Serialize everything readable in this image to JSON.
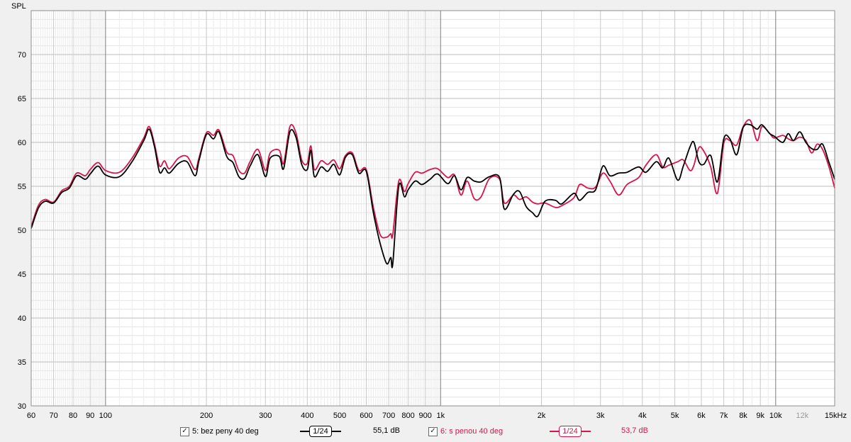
{
  "chart_data": {
    "type": "line",
    "ylabel": "SPL",
    "xscale": "log",
    "xlim": [
      60,
      15000
    ],
    "ylim": [
      30,
      75
    ],
    "yticks": [
      30,
      35,
      40,
      45,
      50,
      55,
      60,
      65,
      70
    ],
    "xticks": [
      {
        "v": 60,
        "label": "60"
      },
      {
        "v": 70,
        "label": "70"
      },
      {
        "v": 80,
        "label": "80"
      },
      {
        "v": 90,
        "label": "90"
      },
      {
        "v": 100,
        "label": "100"
      },
      {
        "v": 200,
        "label": "200"
      },
      {
        "v": 300,
        "label": "300"
      },
      {
        "v": 400,
        "label": "400"
      },
      {
        "v": 500,
        "label": "500"
      },
      {
        "v": 600,
        "label": "600"
      },
      {
        "v": 700,
        "label": "700"
      },
      {
        "v": 800,
        "label": "800"
      },
      {
        "v": 900,
        "label": "900"
      },
      {
        "v": 1000,
        "label": "1k"
      },
      {
        "v": 2000,
        "label": "2k"
      },
      {
        "v": 3000,
        "label": "3k"
      },
      {
        "v": 4000,
        "label": "4k"
      },
      {
        "v": 5000,
        "label": "5k"
      },
      {
        "v": 6000,
        "label": "6k"
      },
      {
        "v": 7000,
        "label": "7k"
      },
      {
        "v": 8000,
        "label": "8k"
      },
      {
        "v": 9000,
        "label": "9k"
      },
      {
        "v": 10000,
        "label": "10k"
      },
      {
        "v": 12000,
        "label": "12k",
        "muted": true
      },
      {
        "v": 15000,
        "label": "15kHz"
      }
    ],
    "grid": true,
    "legend_position": "bottom",
    "series": [
      {
        "name": "5: bez peny 40 deg",
        "color": "#000000",
        "smoothing": "1/24",
        "value_label": "55,1 dB",
        "points": [
          [
            60,
            50.2
          ],
          [
            63,
            52.5
          ],
          [
            66,
            53.3
          ],
          [
            70,
            53.1
          ],
          [
            74,
            54.3
          ],
          [
            78,
            54.8
          ],
          [
            82,
            56.2
          ],
          [
            87,
            55.8
          ],
          [
            90,
            56.4
          ],
          [
            95,
            57.3
          ],
          [
            100,
            56.3
          ],
          [
            110,
            56.1
          ],
          [
            120,
            57.8
          ],
          [
            130,
            60.2
          ],
          [
            135,
            61.5
          ],
          [
            140,
            59.5
          ],
          [
            145,
            56.6
          ],
          [
            150,
            57.1
          ],
          [
            155,
            56.5
          ],
          [
            165,
            57.6
          ],
          [
            175,
            57.8
          ],
          [
            185,
            56.2
          ],
          [
            190,
            57.9
          ],
          [
            200,
            60.9
          ],
          [
            210,
            60.4
          ],
          [
            218,
            61.2
          ],
          [
            230,
            58.4
          ],
          [
            240,
            57.7
          ],
          [
            250,
            56.1
          ],
          [
            260,
            55.9
          ],
          [
            270,
            57.3
          ],
          [
            285,
            58.6
          ],
          [
            300,
            56.1
          ],
          [
            310,
            58.2
          ],
          [
            330,
            58.4
          ],
          [
            340,
            57.0
          ],
          [
            355,
            61.2
          ],
          [
            370,
            60.6
          ],
          [
            385,
            57.5
          ],
          [
            400,
            56.9
          ],
          [
            410,
            59.1
          ],
          [
            420,
            56.1
          ],
          [
            440,
            57.2
          ],
          [
            460,
            56.7
          ],
          [
            480,
            57.5
          ],
          [
            500,
            56.3
          ],
          [
            520,
            58.3
          ],
          [
            545,
            58.6
          ],
          [
            570,
            56.5
          ],
          [
            600,
            56.7
          ],
          [
            630,
            52.0
          ],
          [
            660,
            48.5
          ],
          [
            690,
            46.2
          ],
          [
            710,
            46.9
          ],
          [
            720,
            46.2
          ],
          [
            750,
            55.0
          ],
          [
            780,
            53.8
          ],
          [
            800,
            54.6
          ],
          [
            840,
            55.6
          ],
          [
            880,
            55.2
          ],
          [
            930,
            55.8
          ],
          [
            980,
            56.4
          ],
          [
            1050,
            55.3
          ],
          [
            1100,
            56.2
          ],
          [
            1150,
            54.6
          ],
          [
            1200,
            56.0
          ],
          [
            1260,
            55.6
          ],
          [
            1320,
            55.5
          ],
          [
            1400,
            56.1
          ],
          [
            1500,
            56.0
          ],
          [
            1550,
            52.4
          ],
          [
            1650,
            54.1
          ],
          [
            1720,
            54.4
          ],
          [
            1800,
            52.7
          ],
          [
            1880,
            52.0
          ],
          [
            1950,
            51.6
          ],
          [
            2050,
            53.3
          ],
          [
            2200,
            53.4
          ],
          [
            2300,
            53.0
          ],
          [
            2500,
            54.2
          ],
          [
            2600,
            53.4
          ],
          [
            2750,
            54.3
          ],
          [
            2900,
            54.6
          ],
          [
            3050,
            57.3
          ],
          [
            3200,
            56.2
          ],
          [
            3400,
            56.5
          ],
          [
            3600,
            56.6
          ],
          [
            3900,
            57.2
          ],
          [
            4100,
            56.6
          ],
          [
            4400,
            57.8
          ],
          [
            4600,
            57.1
          ],
          [
            4800,
            58.2
          ],
          [
            5100,
            55.7
          ],
          [
            5300,
            57.3
          ],
          [
            5550,
            59.5
          ],
          [
            5700,
            60.0
          ],
          [
            5900,
            57.8
          ],
          [
            6100,
            57.5
          ],
          [
            6400,
            58.5
          ],
          [
            6700,
            55.5
          ],
          [
            7000,
            60.4
          ],
          [
            7300,
            60.4
          ],
          [
            7650,
            58.6
          ],
          [
            8000,
            61.7
          ],
          [
            8400,
            62.0
          ],
          [
            8800,
            61.5
          ],
          [
            9100,
            62.0
          ],
          [
            9600,
            61.0
          ],
          [
            9900,
            60.7
          ],
          [
            10500,
            60.0
          ],
          [
            10900,
            61.0
          ],
          [
            11300,
            60.2
          ],
          [
            11800,
            61.2
          ],
          [
            12300,
            60.0
          ],
          [
            12800,
            59.3
          ],
          [
            13300,
            59.2
          ],
          [
            13800,
            59.8
          ],
          [
            14400,
            57.8
          ],
          [
            15000,
            55.8
          ]
        ]
      },
      {
        "name": "6: s penou 40 deg",
        "color": "#d7144b",
        "smoothing": "1/24",
        "value_label": "53,7 dB",
        "points": [
          [
            60,
            50.4
          ],
          [
            63,
            52.8
          ],
          [
            66,
            53.5
          ],
          [
            70,
            53.2
          ],
          [
            74,
            54.5
          ],
          [
            78,
            55.0
          ],
          [
            82,
            56.5
          ],
          [
            87,
            56.2
          ],
          [
            90,
            56.9
          ],
          [
            95,
            57.7
          ],
          [
            100,
            56.8
          ],
          [
            110,
            56.6
          ],
          [
            120,
            58.2
          ],
          [
            130,
            60.5
          ],
          [
            135,
            61.8
          ],
          [
            140,
            59.8
          ],
          [
            145,
            57.3
          ],
          [
            150,
            57.9
          ],
          [
            155,
            57.0
          ],
          [
            165,
            58.2
          ],
          [
            175,
            58.4
          ],
          [
            185,
            56.9
          ],
          [
            190,
            58.2
          ],
          [
            200,
            61.1
          ],
          [
            210,
            60.8
          ],
          [
            218,
            61.4
          ],
          [
            230,
            58.9
          ],
          [
            240,
            58.5
          ],
          [
            250,
            56.8
          ],
          [
            260,
            56.5
          ],
          [
            270,
            57.8
          ],
          [
            285,
            59.2
          ],
          [
            300,
            56.8
          ],
          [
            310,
            58.8
          ],
          [
            330,
            59.1
          ],
          [
            340,
            57.6
          ],
          [
            355,
            61.8
          ],
          [
            370,
            61.1
          ],
          [
            385,
            58.0
          ],
          [
            400,
            57.6
          ],
          [
            410,
            59.6
          ],
          [
            420,
            56.9
          ],
          [
            440,
            57.9
          ],
          [
            460,
            57.5
          ],
          [
            480,
            58.0
          ],
          [
            500,
            57.0
          ],
          [
            520,
            58.5
          ],
          [
            545,
            58.8
          ],
          [
            570,
            56.8
          ],
          [
            600,
            56.9
          ],
          [
            630,
            52.6
          ],
          [
            660,
            49.5
          ],
          [
            690,
            49.2
          ],
          [
            710,
            49.6
          ],
          [
            720,
            49.5
          ],
          [
            750,
            55.6
          ],
          [
            780,
            54.4
          ],
          [
            800,
            55.3
          ],
          [
            840,
            56.6
          ],
          [
            880,
            56.5
          ],
          [
            930,
            56.9
          ],
          [
            980,
            57.0
          ],
          [
            1050,
            56.0
          ],
          [
            1100,
            56.3
          ],
          [
            1150,
            54.0
          ],
          [
            1200,
            55.6
          ],
          [
            1260,
            53.6
          ],
          [
            1320,
            53.8
          ],
          [
            1400,
            55.9
          ],
          [
            1500,
            55.8
          ],
          [
            1550,
            53.1
          ],
          [
            1650,
            54.0
          ],
          [
            1720,
            53.5
          ],
          [
            1800,
            53.8
          ],
          [
            1880,
            53.2
          ],
          [
            1950,
            53.0
          ],
          [
            2050,
            53.1
          ],
          [
            2200,
            52.6
          ],
          [
            2300,
            52.8
          ],
          [
            2500,
            53.7
          ],
          [
            2600,
            55.2
          ],
          [
            2750,
            54.8
          ],
          [
            2900,
            54.9
          ],
          [
            3050,
            56.5
          ],
          [
            3200,
            55.6
          ],
          [
            3400,
            54.0
          ],
          [
            3600,
            55.2
          ],
          [
            3900,
            56.0
          ],
          [
            4100,
            57.4
          ],
          [
            4400,
            58.6
          ],
          [
            4600,
            57.2
          ],
          [
            4800,
            57.4
          ],
          [
            5100,
            57.8
          ],
          [
            5300,
            58.0
          ],
          [
            5550,
            56.8
          ],
          [
            5700,
            57.4
          ],
          [
            5900,
            59.4
          ],
          [
            6100,
            59.0
          ],
          [
            6400,
            57.2
          ],
          [
            6700,
            54.2
          ],
          [
            7000,
            59.9
          ],
          [
            7300,
            60.2
          ],
          [
            7650,
            59.7
          ],
          [
            8000,
            61.8
          ],
          [
            8400,
            62.5
          ],
          [
            8800,
            60.2
          ],
          [
            9100,
            61.8
          ],
          [
            9600,
            61.0
          ],
          [
            9900,
            60.5
          ],
          [
            10500,
            60.8
          ],
          [
            10900,
            60.4
          ],
          [
            11300,
            60.2
          ],
          [
            11800,
            60.6
          ],
          [
            12300,
            60.2
          ],
          [
            12800,
            58.8
          ],
          [
            13300,
            59.8
          ],
          [
            13800,
            59.2
          ],
          [
            14400,
            57.3
          ],
          [
            15000,
            54.8
          ]
        ]
      }
    ]
  },
  "legend": [
    {
      "checkbox": "✓",
      "label": "5: bez peny 40 deg",
      "smoothing": "1/24",
      "value": "55,1 dB"
    },
    {
      "checkbox": "✓",
      "label": "6: s penou 40 deg",
      "smoothing": "1/24",
      "value": "53,7 dB"
    }
  ]
}
